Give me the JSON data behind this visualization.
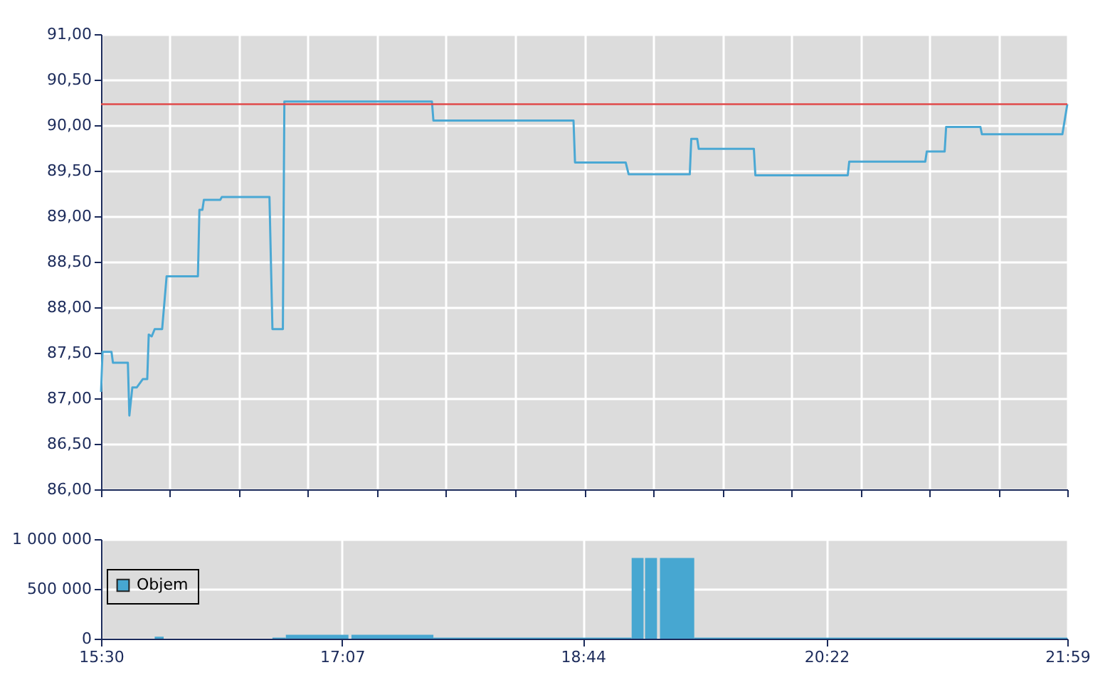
{
  "chart_data": [
    {
      "type": "line",
      "x": [
        15.5,
        15.51,
        15.57,
        15.58,
        15.68,
        15.69,
        15.71,
        15.74,
        15.78,
        15.81,
        15.82,
        15.84,
        15.86,
        15.91,
        15.94,
        16.15,
        16.16,
        16.18,
        16.19,
        16.3,
        16.31,
        16.63,
        16.65,
        16.72,
        16.73,
        17.72,
        17.73,
        18.67,
        18.68,
        19.02,
        19.04,
        19.45,
        19.46,
        19.5,
        19.51,
        19.88,
        19.89,
        20.51,
        20.52,
        21.03,
        21.04,
        21.16,
        21.17,
        21.4,
        21.41,
        21.95,
        21.983
      ],
      "values": [
        87.07,
        87.51,
        87.51,
        87.39,
        87.39,
        86.81,
        87.12,
        87.12,
        87.21,
        87.21,
        87.7,
        87.68,
        87.76,
        87.76,
        88.34,
        88.34,
        89.07,
        89.07,
        89.18,
        89.18,
        89.21,
        89.21,
        87.76,
        87.76,
        90.26,
        90.26,
        90.05,
        90.05,
        89.59,
        89.59,
        89.46,
        89.46,
        89.85,
        89.85,
        89.74,
        89.74,
        89.45,
        89.45,
        89.6,
        89.6,
        89.71,
        89.71,
        89.98,
        89.98,
        89.9,
        89.9,
        90.23
      ],
      "color": "#4aa8d4",
      "xlim": [
        15.5,
        21.983
      ],
      "xticks": [
        {
          "value": 15.5,
          "label": null
        },
        {
          "value": 15.963,
          "label": null
        },
        {
          "value": 16.426,
          "label": null
        },
        {
          "value": 16.889,
          "label": null
        },
        {
          "value": 17.352,
          "label": null
        },
        {
          "value": 17.815,
          "label": null
        },
        {
          "value": 18.279,
          "label": null
        },
        {
          "value": 18.742,
          "label": null
        },
        {
          "value": 19.205,
          "label": null
        },
        {
          "value": 19.668,
          "label": null
        },
        {
          "value": 20.131,
          "label": null
        },
        {
          "value": 20.594,
          "label": null
        },
        {
          "value": 21.057,
          "label": null
        },
        {
          "value": 21.52,
          "label": null
        },
        {
          "value": 21.983,
          "label": null
        }
      ],
      "ylim": [
        86,
        91
      ],
      "yticks": [
        {
          "value": 86,
          "label": "86,00"
        },
        {
          "value": 86.5,
          "label": "86,50"
        },
        {
          "value": 87,
          "label": "87,00"
        },
        {
          "value": 87.5,
          "label": "87,50"
        },
        {
          "value": 88,
          "label": "88,00"
        },
        {
          "value": 88.5,
          "label": "88,50"
        },
        {
          "value": 89,
          "label": "89,00"
        },
        {
          "value": 89.5,
          "label": "89,50"
        },
        {
          "value": 90,
          "label": "90,00"
        },
        {
          "value": 90.5,
          "label": "90,50"
        },
        {
          "value": 91,
          "label": "91,00"
        }
      ],
      "ref_lines": [
        {
          "axis": "y",
          "value": 90.23,
          "color": "#e04a4a"
        }
      ],
      "grid": true,
      "tick_labels": "y"
    },
    {
      "type": "histogram",
      "bins": [
        15.86,
        15.92,
        16.65,
        16.74,
        17.16,
        17.18,
        17.73,
        19.06,
        19.14,
        19.15,
        19.23,
        19.25,
        19.48,
        21.983
      ],
      "series": [
        {
          "name": "Objem",
          "color": "#47a7d1",
          "values": [
            20000,
            null,
            10000,
            40000,
            null,
            40000,
            10000,
            810000,
            null,
            810000,
            null,
            810000,
            10000
          ]
        }
      ],
      "xlim": [
        15.5,
        21.983
      ],
      "xticks": [
        {
          "value": 15.5,
          "label": "15:30"
        },
        {
          "value": 17.117,
          "label": "17:07"
        },
        {
          "value": 18.733,
          "label": "18:44"
        },
        {
          "value": 20.367,
          "label": "20:22"
        },
        {
          "value": 21.983,
          "label": "21:59"
        }
      ],
      "ylim": [
        0,
        1000000
      ],
      "yticks": [
        0,
        {
          "value": 500000,
          "label": "500 000"
        },
        {
          "value": 1000000,
          "label": "1 000 000"
        }
      ],
      "grid": true,
      "legend": "left"
    }
  ]
}
